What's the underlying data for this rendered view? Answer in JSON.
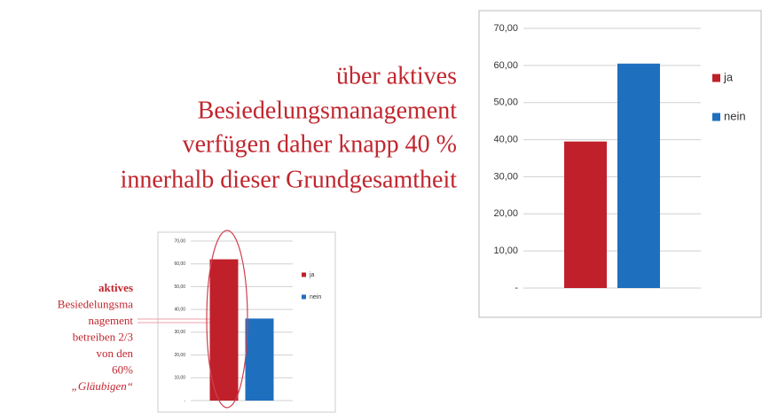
{
  "text": {
    "lines": [
      "über aktives",
      "Besiedelungsmanagement",
      "verfügen daher knapp 40 %",
      "innerhalb dieser Grundgesamtheit"
    ]
  },
  "annotation": {
    "lines": [
      "aktives",
      "Besiedelungsma",
      "nagement",
      "betreiben 2/3",
      "von den",
      "60%",
      "„Gläubigen“"
    ]
  },
  "chart_data": [
    {
      "type": "bar",
      "categories": [
        null
      ],
      "series": [
        {
          "name": "ja",
          "color": "#c0202a",
          "values": [
            39.5
          ]
        },
        {
          "name": "nein",
          "color": "#1f6fbf",
          "values": [
            60.5
          ]
        }
      ],
      "ylim": [
        0,
        70
      ],
      "yticks": [
        {
          "value": 0,
          "label": "-"
        },
        {
          "value": 10,
          "label": "10,00"
        },
        {
          "value": 20,
          "label": "20,00"
        },
        {
          "value": 30,
          "label": "30,00"
        },
        {
          "value": 40,
          "label": "40,00"
        },
        {
          "value": 50,
          "label": "50,00"
        },
        {
          "value": 60,
          "label": "60,00"
        },
        {
          "value": 70,
          "label": "70,00"
        }
      ],
      "grid": true,
      "legend": "right"
    },
    {
      "type": "bar",
      "categories": [
        null
      ],
      "series": [
        {
          "name": "ja",
          "color": "#c0202a",
          "values": [
            62
          ]
        },
        {
          "name": "nein",
          "color": "#1f6fbf",
          "values": [
            36
          ]
        }
      ],
      "ylim": [
        0,
        70
      ],
      "yticks": [
        {
          "value": 0,
          "label": "-"
        },
        {
          "value": 10,
          "label": "10,00"
        },
        {
          "value": 20,
          "label": "20,00"
        },
        {
          "value": 30,
          "label": "30,00"
        },
        {
          "value": 40,
          "label": "40,00"
        },
        {
          "value": 50,
          "label": "50,00"
        },
        {
          "value": 60,
          "label": "60,00"
        },
        {
          "value": 70,
          "label": "70,00"
        }
      ],
      "grid": true,
      "legend": "right"
    }
  ]
}
